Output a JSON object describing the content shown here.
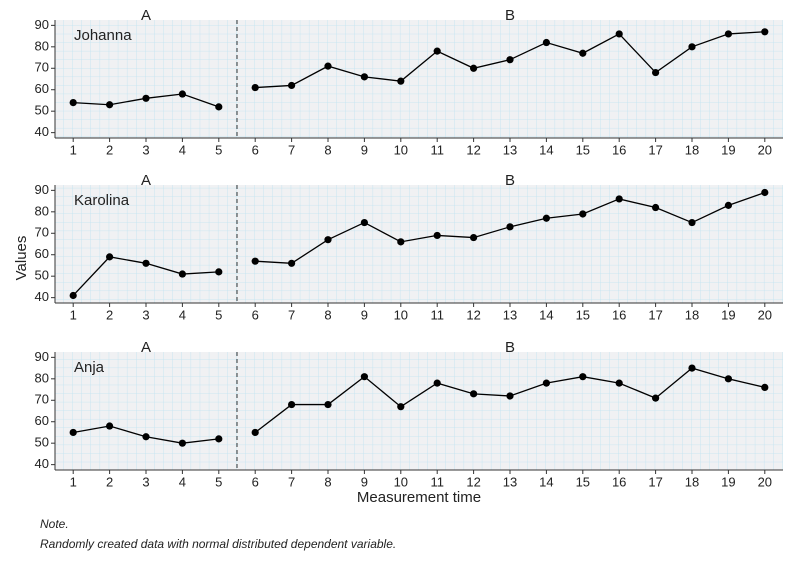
{
  "chart_data": [
    {
      "type": "line",
      "title": "Johanna",
      "xlim": [
        0.5,
        20.5
      ],
      "ylim": [
        37.5,
        92.5
      ],
      "xticks": [
        1,
        2,
        3,
        4,
        5,
        6,
        7,
        8,
        9,
        10,
        11,
        12,
        13,
        14,
        15,
        16,
        17,
        18,
        19,
        20
      ],
      "yticks": [
        40,
        50,
        60,
        70,
        80,
        90
      ],
      "color": "#000000",
      "phases": [
        {
          "name": "A",
          "x": [
            1,
            2,
            3,
            4,
            5
          ],
          "values": [
            54,
            53,
            56,
            58,
            52
          ]
        },
        {
          "name": "B",
          "x": [
            6,
            7,
            8,
            9,
            10,
            11,
            12,
            13,
            14,
            15,
            16,
            17,
            18,
            19,
            20
          ],
          "values": [
            61,
            62,
            71,
            66,
            64,
            78,
            70,
            74,
            82,
            77,
            86,
            68,
            80,
            86,
            87
          ]
        }
      ]
    },
    {
      "type": "line",
      "title": "Karolina",
      "xlim": [
        0.5,
        20.5
      ],
      "ylim": [
        37.5,
        92.5
      ],
      "xticks": [
        1,
        2,
        3,
        4,
        5,
        6,
        7,
        8,
        9,
        10,
        11,
        12,
        13,
        14,
        15,
        16,
        17,
        18,
        19,
        20
      ],
      "yticks": [
        40,
        50,
        60,
        70,
        80,
        90
      ],
      "color": "#000000",
      "phases": [
        {
          "name": "A",
          "x": [
            1,
            2,
            3,
            4,
            5
          ],
          "values": [
            41,
            59,
            56,
            51,
            52
          ]
        },
        {
          "name": "B",
          "x": [
            6,
            7,
            8,
            9,
            10,
            11,
            12,
            13,
            14,
            15,
            16,
            17,
            18,
            19,
            20
          ],
          "values": [
            57,
            56,
            67,
            75,
            66,
            69,
            68,
            73,
            77,
            79,
            86,
            82,
            75,
            83,
            89
          ]
        }
      ]
    },
    {
      "type": "line",
      "title": "Anja",
      "xlim": [
        0.5,
        20.5
      ],
      "ylim": [
        37.5,
        92.5
      ],
      "xticks": [
        1,
        2,
        3,
        4,
        5,
        6,
        7,
        8,
        9,
        10,
        11,
        12,
        13,
        14,
        15,
        16,
        17,
        18,
        19,
        20
      ],
      "yticks": [
        40,
        50,
        60,
        70,
        80,
        90
      ],
      "color": "#000000",
      "phases": [
        {
          "name": "A",
          "x": [
            1,
            2,
            3,
            4,
            5
          ],
          "values": [
            55,
            58,
            53,
            50,
            52
          ]
        },
        {
          "name": "B",
          "x": [
            6,
            7,
            8,
            9,
            10,
            11,
            12,
            13,
            14,
            15,
            16,
            17,
            18,
            19,
            20
          ],
          "values": [
            55,
            68,
            68,
            81,
            67,
            78,
            73,
            72,
            78,
            81,
            78,
            71,
            85,
            80,
            76
          ]
        }
      ]
    }
  ],
  "ylabel": "Values",
  "xlabel": "Measurement time",
  "note_title": "Note.",
  "note": "Randomly created data with normal distributed dependent variable."
}
